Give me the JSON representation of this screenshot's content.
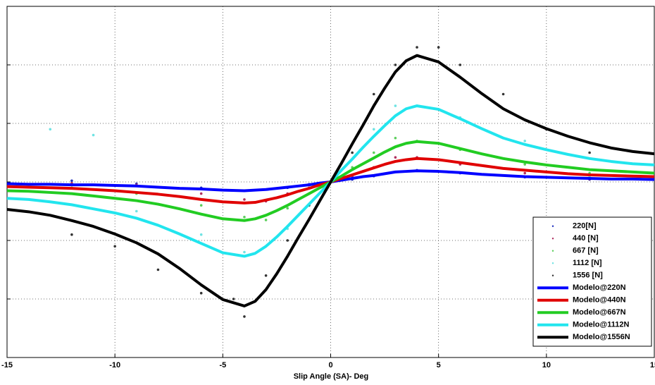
{
  "chart_data": {
    "type": "line",
    "x_label": "Slip Angle (SA)- Deg",
    "xlim": [
      -15,
      15
    ],
    "xticks": [
      -15,
      -10,
      -5,
      0,
      5,
      10,
      15
    ],
    "ylim": [
      -3,
      3
    ],
    "yticks": [
      -2,
      -1,
      0,
      1,
      2
    ],
    "grid": true,
    "legend": "lower right",
    "series": [
      {
        "name": "220[N]",
        "mode": "markers",
        "color": "#1f2fbf",
        "x": [
          -12,
          -9,
          -6,
          -4,
          -2,
          -1,
          1,
          2,
          4,
          6,
          9,
          12
        ],
        "values": [
          0.02,
          -0.03,
          -0.1,
          -0.15,
          -0.1,
          -0.04,
          0.04,
          0.1,
          0.2,
          0.15,
          0.08,
          0.04
        ]
      },
      {
        "name": "440 [N]",
        "mode": "markers",
        "color": "#b03060",
        "x": [
          -12,
          -9,
          -6,
          -4,
          -3,
          -2,
          -1,
          1,
          2,
          3,
          4,
          6,
          9,
          12
        ],
        "values": [
          -0.02,
          -0.05,
          -0.2,
          -0.3,
          -0.33,
          -0.2,
          -0.1,
          0.1,
          0.25,
          0.42,
          0.42,
          0.3,
          0.15,
          0.05
        ]
      },
      {
        "name": "667 [N]",
        "mode": "markers",
        "color": "#5ccf5c",
        "x": [
          -12,
          -9,
          -6,
          -4,
          -3,
          -2,
          -1,
          1,
          2,
          3,
          4,
          6,
          9,
          12
        ],
        "values": [
          -0.1,
          -0.2,
          -0.4,
          -0.6,
          -0.65,
          -0.45,
          -0.2,
          0.25,
          0.5,
          0.75,
          0.7,
          0.55,
          0.3,
          0.15
        ]
      },
      {
        "name": "1112 [N]",
        "mode": "markers",
        "color": "#6fe3e3",
        "x": [
          -13,
          -11,
          -9,
          -6,
          -4,
          -3,
          -2,
          -1,
          1,
          2,
          3,
          4,
          6,
          9,
          12
        ],
        "values": [
          0.9,
          0.8,
          -0.5,
          -0.9,
          -1.2,
          -1.1,
          -0.8,
          -0.4,
          0.5,
          0.9,
          1.3,
          1.3,
          1.1,
          0.7,
          0.1
        ]
      },
      {
        "name": "1556 [N]",
        "mode": "markers",
        "color": "#333333",
        "x": [
          -12,
          -10,
          -8,
          -6,
          -4.5,
          -4,
          -3,
          -2,
          -1,
          1,
          2,
          3,
          4,
          5,
          6,
          8,
          10,
          12
        ],
        "values": [
          -0.9,
          -1.1,
          -1.5,
          -1.9,
          -2.0,
          -2.3,
          -1.6,
          -1.0,
          -0.4,
          0.5,
          1.5,
          2.0,
          2.3,
          2.3,
          2.0,
          1.5,
          0.9,
          0.5
        ]
      },
      {
        "name": "Modelo@220N",
        "mode": "lines",
        "color": "#0000ff",
        "x": [
          -15,
          -14,
          -13,
          -12,
          -11,
          -10,
          -9,
          -8,
          -7,
          -6,
          -5,
          -4,
          -3.5,
          -3,
          -2.5,
          -2,
          -1.5,
          -1,
          -0.5,
          0,
          0.5,
          1,
          1.5,
          2,
          2.5,
          3,
          3.5,
          4,
          5,
          6,
          7,
          8,
          9,
          10,
          11,
          12,
          13,
          14,
          15
        ],
        "values": [
          -0.03,
          -0.04,
          -0.04,
          -0.05,
          -0.05,
          -0.06,
          -0.07,
          -0.09,
          -0.11,
          -0.12,
          -0.14,
          -0.15,
          -0.14,
          -0.13,
          -0.11,
          -0.09,
          -0.07,
          -0.05,
          -0.02,
          0,
          0.03,
          0.06,
          0.09,
          0.11,
          0.14,
          0.17,
          0.18,
          0.19,
          0.18,
          0.16,
          0.13,
          0.11,
          0.09,
          0.08,
          0.07,
          0.06,
          0.05,
          0.05,
          0.04
        ]
      },
      {
        "name": "Modelo@440N",
        "mode": "lines",
        "color": "#e00000",
        "x": [
          -15,
          -14,
          -13,
          -12,
          -11,
          -10,
          -9,
          -8,
          -7,
          -6,
          -5,
          -4,
          -3.5,
          -3,
          -2.5,
          -2,
          -1.5,
          -1,
          -0.5,
          0,
          0.5,
          1,
          1.5,
          2,
          2.5,
          3,
          3.5,
          4,
          5,
          6,
          7,
          8,
          9,
          10,
          11,
          12,
          13,
          14,
          15
        ],
        "values": [
          -0.08,
          -0.09,
          -0.1,
          -0.11,
          -0.13,
          -0.15,
          -0.18,
          -0.21,
          -0.25,
          -0.3,
          -0.34,
          -0.36,
          -0.35,
          -0.31,
          -0.27,
          -0.22,
          -0.16,
          -0.11,
          -0.05,
          0,
          0.06,
          0.12,
          0.18,
          0.24,
          0.3,
          0.35,
          0.38,
          0.4,
          0.38,
          0.33,
          0.28,
          0.23,
          0.2,
          0.17,
          0.14,
          0.12,
          0.11,
          0.1,
          0.09
        ]
      },
      {
        "name": "Modelo@667N",
        "mode": "lines",
        "color": "#22cc22",
        "x": [
          -15,
          -14,
          -13,
          -12,
          -11,
          -10,
          -9,
          -8,
          -7,
          -6,
          -5,
          -4,
          -3.5,
          -3,
          -2.5,
          -2,
          -1.5,
          -1,
          -0.5,
          0,
          0.5,
          1,
          1.5,
          2,
          2.5,
          3,
          3.5,
          4,
          5,
          6,
          7,
          8,
          9,
          10,
          11,
          12,
          13,
          14,
          15
        ],
        "values": [
          -0.15,
          -0.16,
          -0.18,
          -0.2,
          -0.24,
          -0.28,
          -0.32,
          -0.38,
          -0.46,
          -0.55,
          -0.63,
          -0.66,
          -0.63,
          -0.57,
          -0.49,
          -0.4,
          -0.3,
          -0.2,
          -0.1,
          0,
          0.1,
          0.21,
          0.31,
          0.41,
          0.51,
          0.6,
          0.66,
          0.69,
          0.66,
          0.57,
          0.48,
          0.4,
          0.34,
          0.29,
          0.25,
          0.21,
          0.19,
          0.17,
          0.15
        ]
      },
      {
        "name": "Modelo@1112N",
        "mode": "lines",
        "color": "#22e5ee",
        "x": [
          -15,
          -14,
          -13,
          -12,
          -11,
          -10,
          -9,
          -8,
          -7,
          -6,
          -5,
          -4,
          -3.5,
          -3,
          -2.5,
          -2,
          -1.5,
          -1,
          -0.5,
          0,
          0.5,
          1,
          1.5,
          2,
          2.5,
          3,
          3.5,
          4,
          5,
          6,
          7,
          8,
          9,
          10,
          11,
          12,
          13,
          14,
          15
        ],
        "values": [
          -0.28,
          -0.3,
          -0.34,
          -0.39,
          -0.46,
          -0.53,
          -0.62,
          -0.74,
          -0.89,
          -1.05,
          -1.21,
          -1.27,
          -1.22,
          -1.1,
          -0.94,
          -0.76,
          -0.57,
          -0.38,
          -0.19,
          0,
          0.2,
          0.39,
          0.59,
          0.78,
          0.96,
          1.13,
          1.25,
          1.3,
          1.24,
          1.08,
          0.91,
          0.75,
          0.64,
          0.55,
          0.47,
          0.4,
          0.35,
          0.31,
          0.29
        ]
      },
      {
        "name": "Modelo@1556N",
        "mode": "lines",
        "color": "#000000",
        "x": [
          -15,
          -14,
          -13,
          -12,
          -11,
          -10,
          -9,
          -8,
          -7,
          -6,
          -5,
          -4,
          -3.5,
          -3,
          -2.5,
          -2,
          -1.5,
          -1,
          -0.5,
          0,
          0.5,
          1,
          1.5,
          2,
          2.5,
          3,
          3.5,
          4,
          5,
          6,
          7,
          8,
          9,
          10,
          11,
          12,
          13,
          14,
          15
        ],
        "values": [
          -0.47,
          -0.51,
          -0.57,
          -0.66,
          -0.76,
          -0.89,
          -1.04,
          -1.23,
          -1.48,
          -1.76,
          -2.01,
          -2.12,
          -2.04,
          -1.84,
          -1.57,
          -1.27,
          -0.95,
          -0.64,
          -0.32,
          0,
          0.32,
          0.65,
          0.97,
          1.3,
          1.6,
          1.88,
          2.07,
          2.16,
          2.05,
          1.79,
          1.51,
          1.25,
          1.06,
          0.91,
          0.78,
          0.67,
          0.58,
          0.52,
          0.48
        ]
      }
    ]
  }
}
